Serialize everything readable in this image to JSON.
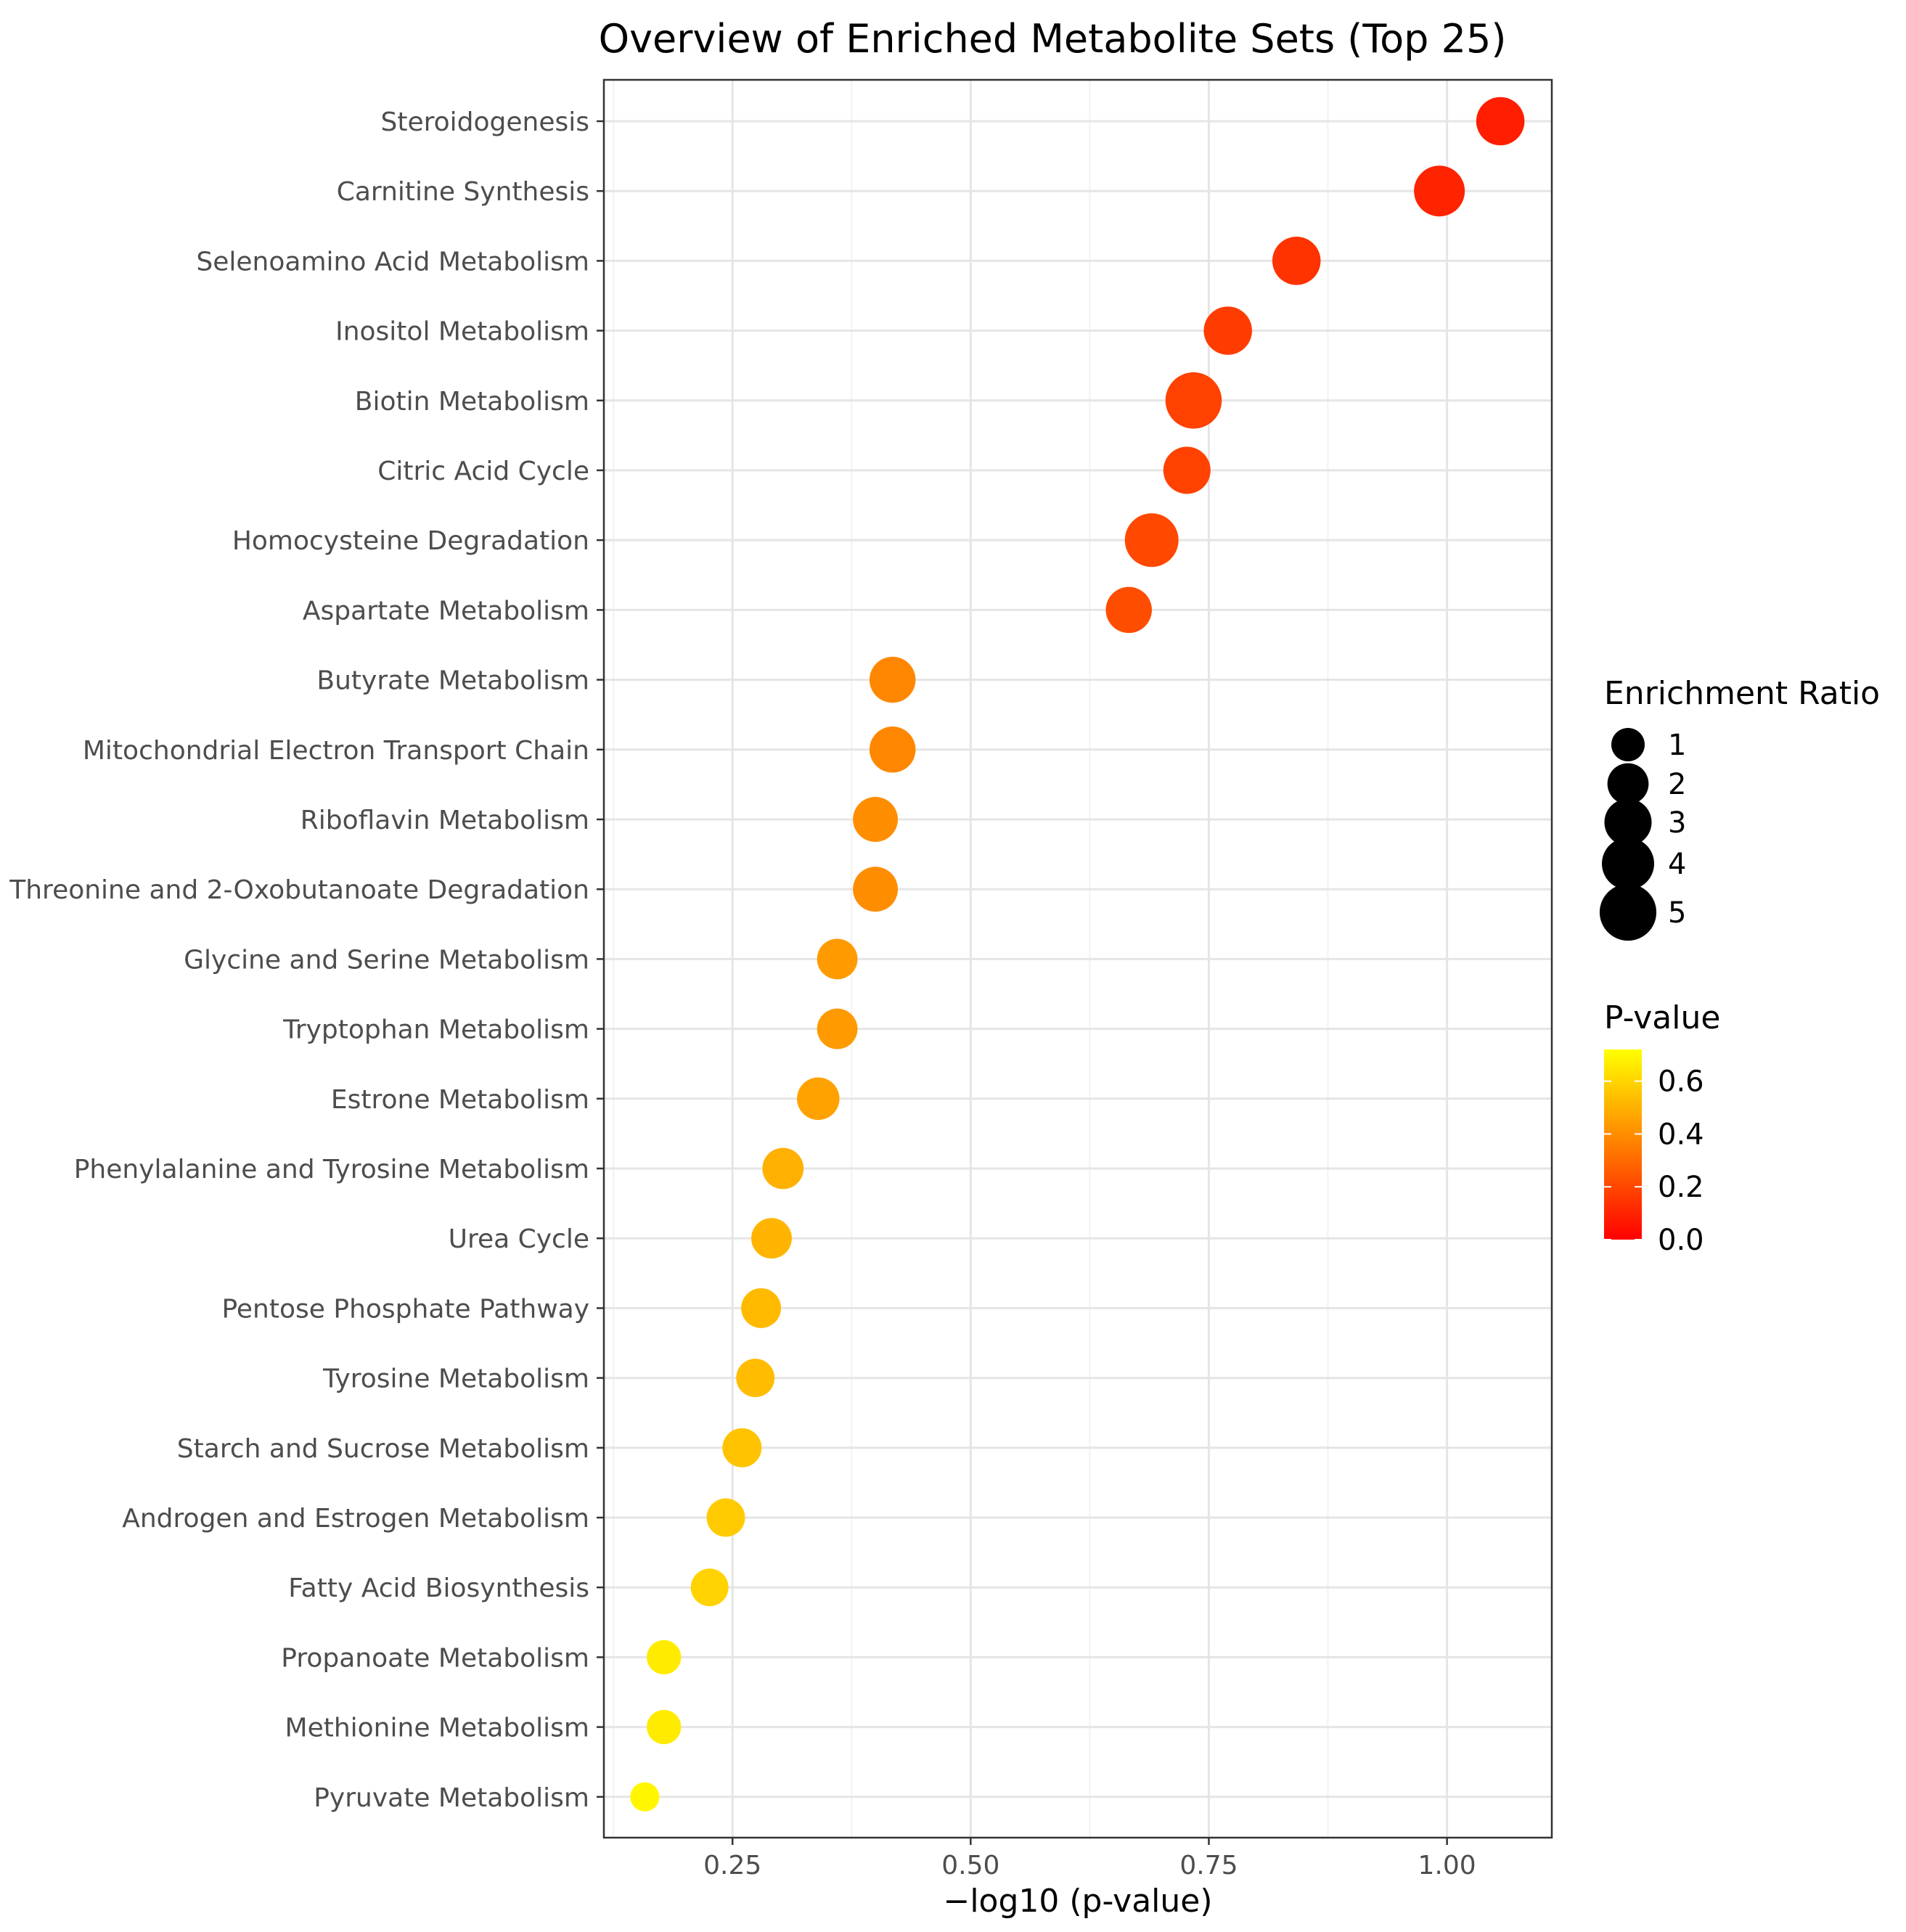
{
  "chart_data": {
    "type": "scatter",
    "title": "Overview of Enriched Metabolite Sets (Top 25)",
    "xlabel": "−log10 (p-value)",
    "ylabel": "",
    "xlim": [
      0.115,
      1.11
    ],
    "xticks": [
      0.25,
      0.5,
      0.75,
      1.0
    ],
    "xtick_labels": [
      "0.25",
      "0.50",
      "0.75",
      "1.00"
    ],
    "grid": true,
    "points": [
      {
        "label": "Steroidogenesis",
        "x": 1.056,
        "p": 0.088,
        "ratio": 3.2
      },
      {
        "label": "Carnitine Synthesis",
        "x": 0.992,
        "p": 0.102,
        "ratio": 3.7
      },
      {
        "label": "Selenoamino Acid Metabolism",
        "x": 0.842,
        "p": 0.144,
        "ratio": 3.2
      },
      {
        "label": "Inositol Metabolism",
        "x": 0.77,
        "p": 0.17,
        "ratio": 3.2
      },
      {
        "label": "Biotin Metabolism",
        "x": 0.734,
        "p": 0.185,
        "ratio": 4.9
      },
      {
        "label": "Citric Acid Cycle",
        "x": 0.727,
        "p": 0.187,
        "ratio": 3.0
      },
      {
        "label": "Homocysteine Degradation",
        "x": 0.69,
        "p": 0.204,
        "ratio": 4.3
      },
      {
        "label": "Aspartate Metabolism",
        "x": 0.666,
        "p": 0.216,
        "ratio": 2.8
      },
      {
        "label": "Butyrate Metabolism",
        "x": 0.418,
        "p": 0.382,
        "ratio": 2.8
      },
      {
        "label": "Mitochondrial Electron Transport Chain",
        "x": 0.418,
        "p": 0.382,
        "ratio": 2.8
      },
      {
        "label": "Riboflavin Metabolism",
        "x": 0.4,
        "p": 0.398,
        "ratio": 2.6
      },
      {
        "label": "Threonine and 2-Oxobutanoate Degradation",
        "x": 0.4,
        "p": 0.398,
        "ratio": 2.6
      },
      {
        "label": "Glycine and Serine Metabolism",
        "x": 0.36,
        "p": 0.436,
        "ratio": 1.9
      },
      {
        "label": "Tryptophan Metabolism",
        "x": 0.36,
        "p": 0.436,
        "ratio": 1.9
      },
      {
        "label": "Estrone Metabolism",
        "x": 0.34,
        "p": 0.457,
        "ratio": 2.2
      },
      {
        "label": "Phenylalanine and Tyrosine Metabolism",
        "x": 0.303,
        "p": 0.498,
        "ratio": 2.0
      },
      {
        "label": "Urea Cycle",
        "x": 0.291,
        "p": 0.512,
        "ratio": 1.9
      },
      {
        "label": "Pentose Phosphate Pathway",
        "x": 0.28,
        "p": 0.525,
        "ratio": 1.8
      },
      {
        "label": "Tyrosine Metabolism",
        "x": 0.274,
        "p": 0.532,
        "ratio": 1.6
      },
      {
        "label": "Starch and Sucrose Metabolism",
        "x": 0.26,
        "p": 0.55,
        "ratio": 1.7
      },
      {
        "label": "Androgen and Estrogen Metabolism",
        "x": 0.243,
        "p": 0.571,
        "ratio": 1.6
      },
      {
        "label": "Fatty Acid Biosynthesis",
        "x": 0.226,
        "p": 0.594,
        "ratio": 1.5
      },
      {
        "label": "Propanoate Metabolism",
        "x": 0.178,
        "p": 0.664,
        "ratio": 1.1
      },
      {
        "label": "Methionine Metabolism",
        "x": 0.178,
        "p": 0.664,
        "ratio": 1.1
      },
      {
        "label": "Pyruvate Metabolism",
        "x": 0.158,
        "p": 0.695,
        "ratio": 0.6
      }
    ],
    "size_legend": {
      "title": "Enrichment Ratio",
      "entries": [
        {
          "label": "1",
          "value": 1
        },
        {
          "label": "2",
          "value": 2
        },
        {
          "label": "3",
          "value": 3
        },
        {
          "label": "4",
          "value": 4
        },
        {
          "label": "5",
          "value": 5
        }
      ]
    },
    "color_legend": {
      "title": "P-value",
      "min": 0.0,
      "max": 0.72,
      "low_color": "#ff0000",
      "high_color": "#ffff00",
      "tick_values": [
        0.0,
        0.2,
        0.4,
        0.6
      ],
      "tick_labels": [
        "0.0",
        "0.2",
        "0.4",
        "0.6"
      ]
    }
  }
}
